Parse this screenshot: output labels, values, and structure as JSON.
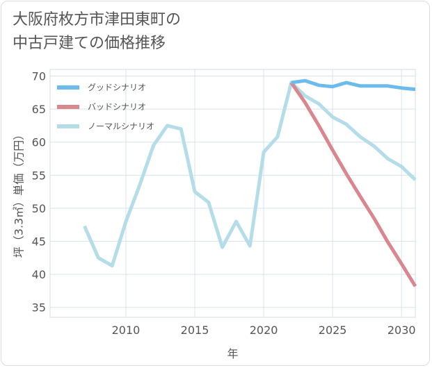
{
  "page": {
    "title_line1": "大阪府枚方市津田東町の",
    "title_line2": "中古戸建ての価格推移"
  },
  "chart_data": {
    "type": "line",
    "title": "大阪府枚方市津田東町の中古戸建ての価格推移",
    "xlabel": "年",
    "ylabel": "坪（3.3㎡）単価（万円）",
    "xlim": [
      2004.5,
      2031
    ],
    "ylim": [
      33.5,
      71
    ],
    "xticks": [
      2010,
      2015,
      2020,
      2025,
      2030
    ],
    "yticks": [
      35,
      40,
      45,
      50,
      55,
      60,
      65,
      70
    ],
    "grid": true,
    "legend_position": "top-left",
    "series": [
      {
        "name": "グッドシナリオ",
        "color": "#6bbbec",
        "x": [
          2022,
          2023,
          2024,
          2025,
          2026,
          2027,
          2028,
          2029,
          2030,
          2031
        ],
        "values": [
          69.0,
          69.3,
          68.6,
          68.4,
          69.0,
          68.5,
          68.5,
          68.5,
          68.2,
          68.0
        ]
      },
      {
        "name": "バッドシナリオ",
        "color": "#d9868e",
        "x": [
          2022,
          2023,
          2024,
          2025,
          2026,
          2027,
          2028,
          2029,
          2030,
          2031
        ],
        "values": [
          69.0,
          66.0,
          62.5,
          58.8,
          55.2,
          51.8,
          48.5,
          44.9,
          41.6,
          38.2
        ]
      },
      {
        "name": "ノーマルシナリオ",
        "color": "#b5dce9",
        "x": [
          2007,
          2008,
          2009,
          2010,
          2011,
          2012,
          2013,
          2014,
          2015,
          2016,
          2017,
          2018,
          2019,
          2020,
          2021,
          2022,
          2023,
          2024,
          2025,
          2026,
          2027,
          2028,
          2029,
          2030,
          2031
        ],
        "values": [
          47.3,
          42.5,
          41.3,
          48.0,
          53.5,
          59.5,
          62.5,
          62.0,
          52.5,
          50.9,
          44.1,
          48.0,
          44.3,
          58.5,
          60.8,
          69.0,
          67.0,
          65.8,
          63.8,
          62.7,
          60.8,
          59.4,
          57.5,
          56.3,
          54.3
        ]
      }
    ]
  }
}
